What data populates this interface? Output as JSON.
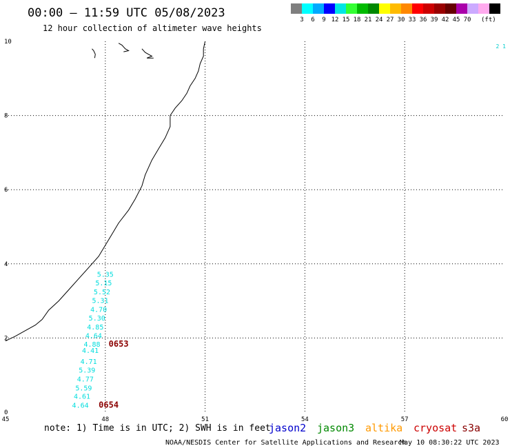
{
  "header": {
    "title": "00:00 — 11:59 UTC 05/08/2023",
    "subtitle": "12 hour collection of altimeter wave heights"
  },
  "colorbar": {
    "colors": [
      "#7f7f7f",
      "#00ffff",
      "#00aaff",
      "#0000ff",
      "#00e5e5",
      "#33ff33",
      "#00bb00",
      "#008800",
      "#ffff00",
      "#ffbb00",
      "#ff8800",
      "#ff0000",
      "#cc0000",
      "#990000",
      "#660000",
      "#aa00aa",
      "#ccaaff",
      "#ffaaee",
      "#000000"
    ],
    "labels": [
      "3",
      "6",
      "9",
      "12",
      "15",
      "18",
      "21",
      "24",
      "27",
      "30",
      "33",
      "36",
      "39",
      "42",
      "45",
      "70"
    ],
    "unit": "(ft)"
  },
  "chart_data": {
    "type": "map",
    "xlim": [
      45,
      60
    ],
    "ylim": [
      0,
      10
    ],
    "x_ticks": [
      45,
      48,
      51,
      54,
      57,
      60
    ],
    "y_ticks": [
      0,
      2,
      4,
      6,
      8,
      10
    ],
    "grid": true,
    "swh_color": "#00dddd",
    "time_color": "#8b0000",
    "swh_points": [
      {
        "lon": 48.0,
        "lat": 3.65,
        "value": "5.35"
      },
      {
        "lon": 47.95,
        "lat": 3.42,
        "value": "5.15"
      },
      {
        "lon": 47.9,
        "lat": 3.18,
        "value": "5.52"
      },
      {
        "lon": 47.85,
        "lat": 2.95,
        "value": "5.31"
      },
      {
        "lon": 47.8,
        "lat": 2.7,
        "value": "4.70"
      },
      {
        "lon": 47.75,
        "lat": 2.47,
        "value": "5.30"
      },
      {
        "lon": 47.7,
        "lat": 2.23,
        "value": "4.85"
      },
      {
        "lon": 47.65,
        "lat": 2.0,
        "value": "4.64"
      },
      {
        "lon": 47.6,
        "lat": 1.77,
        "value": "4.88"
      },
      {
        "lon": 47.55,
        "lat": 1.6,
        "value": "4.41"
      },
      {
        "lon": 47.5,
        "lat": 1.3,
        "value": "4.71"
      },
      {
        "lon": 47.45,
        "lat": 1.07,
        "value": "5.39"
      },
      {
        "lon": 47.4,
        "lat": 0.83,
        "value": "4.77"
      },
      {
        "lon": 47.35,
        "lat": 0.59,
        "value": "5.59"
      },
      {
        "lon": 47.3,
        "lat": 0.36,
        "value": "4.61"
      },
      {
        "lon": 47.25,
        "lat": 0.12,
        "value": "4.64"
      }
    ],
    "pass_times": [
      {
        "lon": 48.4,
        "lat": 1.77,
        "label": "0653"
      },
      {
        "lon": 48.1,
        "lat": 0.12,
        "label": "0654"
      }
    ],
    "coastline": [
      [
        45.0,
        1.92
      ],
      [
        45.3,
        2.05
      ],
      [
        45.6,
        2.2
      ],
      [
        45.9,
        2.35
      ],
      [
        46.1,
        2.5
      ],
      [
        46.3,
        2.75
      ],
      [
        46.6,
        3.0
      ],
      [
        46.9,
        3.3
      ],
      [
        47.2,
        3.6
      ],
      [
        47.5,
        3.9
      ],
      [
        47.8,
        4.2
      ],
      [
        48.0,
        4.5
      ],
      [
        48.2,
        4.8
      ],
      [
        48.4,
        5.1
      ],
      [
        48.7,
        5.45
      ],
      [
        48.9,
        5.75
      ],
      [
        49.1,
        6.1
      ],
      [
        49.2,
        6.4
      ],
      [
        49.4,
        6.8
      ],
      [
        49.6,
        7.1
      ],
      [
        49.8,
        7.4
      ],
      [
        49.95,
        7.7
      ],
      [
        49.95,
        8.0
      ],
      [
        50.1,
        8.2
      ],
      [
        50.3,
        8.4
      ],
      [
        50.45,
        8.6
      ],
      [
        50.55,
        8.8
      ],
      [
        50.7,
        9.0
      ],
      [
        50.8,
        9.2
      ],
      [
        50.85,
        9.4
      ],
      [
        50.95,
        9.6
      ],
      [
        50.95,
        9.8
      ],
      [
        51.0,
        10.0
      ]
    ],
    "islands": [
      [
        [
          47.6,
          9.8
        ],
        [
          47.65,
          9.75
        ],
        [
          47.7,
          9.65
        ],
        [
          47.68,
          9.55
        ]
      ],
      [
        [
          48.4,
          9.95
        ],
        [
          48.5,
          9.9
        ],
        [
          48.6,
          9.8
        ],
        [
          48.7,
          9.75
        ],
        [
          48.55,
          9.72
        ]
      ],
      [
        [
          49.1,
          9.8
        ],
        [
          49.2,
          9.7
        ],
        [
          49.3,
          9.65
        ],
        [
          49.4,
          9.6
        ],
        [
          49.25,
          9.55
        ],
        [
          49.45,
          9.55
        ]
      ]
    ]
  },
  "note": {
    "text": "note: 1) Time is in UTC; 2) SWH is in feet"
  },
  "legend": [
    {
      "name": "jason2",
      "color": "#0000cc"
    },
    {
      "name": "jason3",
      "color": "#008800"
    },
    {
      "name": "altika",
      "color": "#ff9900"
    },
    {
      "name": "cryosat",
      "color": "#cc0000"
    },
    {
      "name": "s3a",
      "color": "#880000"
    }
  ],
  "footer": {
    "credit": "NOAA/NESDIS Center for Satellite Applications and Research",
    "timestamp": "May 10 08:30:22 UTC 2023"
  },
  "edge_marks": "2 1"
}
